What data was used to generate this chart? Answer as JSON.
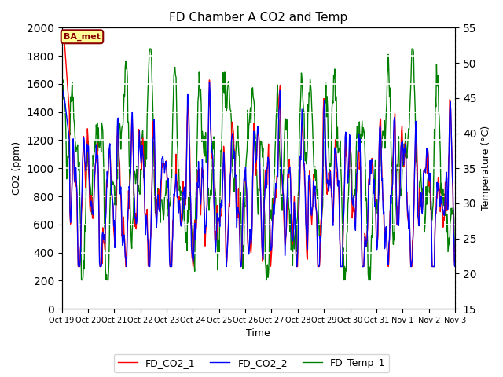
{
  "title": "FD Chamber A CO2 and Temp",
  "xlabel": "Time",
  "ylabel_left": "CO2 (ppm)",
  "ylabel_right": "Temperature (°C)",
  "ylim_left": [
    0,
    2000
  ],
  "ylim_right": [
    15,
    55
  ],
  "yticks_left": [
    0,
    200,
    400,
    600,
    800,
    1000,
    1200,
    1400,
    1600,
    1800,
    2000
  ],
  "yticks_right": [
    15,
    20,
    25,
    30,
    35,
    40,
    45,
    50,
    55
  ],
  "xtick_labels": [
    "Oct 19",
    "Oct 20",
    "Oct 21",
    "Oct 22",
    "Oct 23",
    "Oct 24",
    "Oct 25",
    "Oct 26",
    "Oct 27",
    "Oct 28",
    "Oct 29",
    "Oct 30",
    "Oct 31",
    "Nov 1",
    "Nov 2",
    "Nov 3"
  ],
  "line_colors": [
    "red",
    "blue",
    "green"
  ],
  "legend_labels": [
    "FD_CO2_1",
    "FD_CO2_2",
    "FD_Temp_1"
  ],
  "annotation_text": "BA_met",
  "annotation_color": "#8B0000",
  "annotation_bg": "#ffff99",
  "plot_bg": "#e8e8e8",
  "grid_color": "#ffffff",
  "linewidth": 1.0
}
